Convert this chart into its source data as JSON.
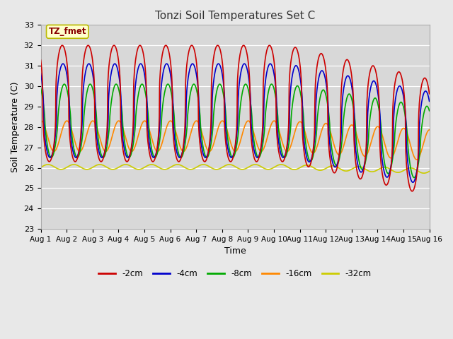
{
  "title": "Tonzi Soil Temperatures Set C",
  "xlabel": "Time",
  "ylabel": "Soil Temperature (C)",
  "annotation": "TZ_fmet",
  "ylim": [
    23.0,
    33.0
  ],
  "yticks": [
    23.0,
    24.0,
    25.0,
    26.0,
    27.0,
    28.0,
    29.0,
    30.0,
    31.0,
    32.0,
    33.0
  ],
  "xtick_labels": [
    "Aug 1",
    "Aug 2",
    "Aug 3",
    "Aug 4",
    "Aug 5",
    "Aug 6",
    "Aug 7",
    "Aug 8",
    "Aug 9",
    "Aug 10",
    "Aug 11",
    "Aug 12",
    "Aug 13",
    "Aug 14",
    "Aug 15",
    "Aug 16"
  ],
  "series": {
    "-2cm": {
      "color": "#cc0000",
      "lw": 1.2
    },
    "-4cm": {
      "color": "#0000cc",
      "lw": 1.2
    },
    "-8cm": {
      "color": "#00aa00",
      "lw": 1.2
    },
    "-16cm": {
      "color": "#ff8800",
      "lw": 1.2
    },
    "-32cm": {
      "color": "#cccc00",
      "lw": 1.2
    }
  },
  "fig_facecolor": "#e8e8e8",
  "ax_facecolor": "#d8d8d8"
}
